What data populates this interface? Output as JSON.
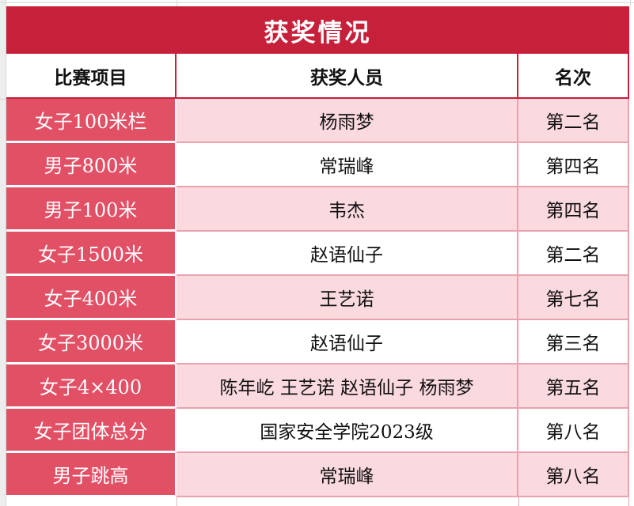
{
  "colors": {
    "title_bg": "#c7203a",
    "title_text": "#ffffff",
    "event_column_bg": "#e25066",
    "event_column_text": "#ffffff",
    "row_pink_bg": "#fad9df",
    "row_white_bg": "#ffffff",
    "body_border": "#e9a2ae",
    "header_border": "#c7203a",
    "margin_gridline": "#d9d9d9"
  },
  "table": {
    "title": "获奖情况",
    "headers": [
      "比赛项目",
      "获奖人员",
      "名次"
    ],
    "rows": [
      {
        "event": "女子100米栏",
        "people": "杨雨梦",
        "rank": "第二名"
      },
      {
        "event": "男子800米",
        "people": "常瑞峰",
        "rank": "第四名"
      },
      {
        "event": "男子100米",
        "people": "韦杰",
        "rank": "第四名"
      },
      {
        "event": "女子1500米",
        "people": "赵语仙子",
        "rank": "第二名"
      },
      {
        "event": "女子400米",
        "people": "王艺诺",
        "rank": "第七名"
      },
      {
        "event": "女子3000米",
        "people": "赵语仙子",
        "rank": "第三名"
      },
      {
        "event": "女子4×400",
        "people": "陈年屹  王艺诺  赵语仙子  杨雨梦",
        "rank": "第五名"
      },
      {
        "event": "女子团体总分",
        "people": "国家安全学院2023级",
        "rank": "第八名"
      },
      {
        "event": "男子跳高",
        "people": "常瑞峰",
        "rank": "第八名"
      }
    ]
  }
}
